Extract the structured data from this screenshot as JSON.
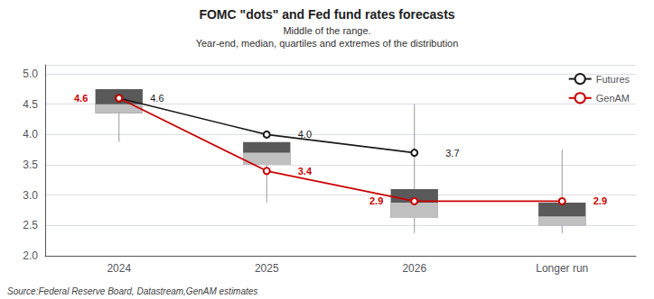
{
  "chart_data": {
    "type": "boxplot",
    "title": "FOMC \"dots\" and Fed fund rates forecasts",
    "subtitle": [
      "Middle of the range.",
      "Year-end, median, quartiles and extremes of the distribution"
    ],
    "source": "Source:Federal Reserve Board, Datastream,GenAM estimates",
    "categories": [
      "2024",
      "2025",
      "2026",
      "Longer run"
    ],
    "boxes": {
      "colors": [
        "#c0c0c0",
        "#595959",
        "#999999"
      ],
      "values": [
        {
          "tail_low": 3.88,
          "whisker_low": 4.1,
          "q1": 4.35,
          "median": 4.5,
          "q3": 4.75,
          "whisker_high": null
        },
        {
          "tail_low": 2.88,
          "whisker_low": 3.1,
          "q1": 3.5,
          "median": 3.7,
          "q3": 3.875,
          "whisker_high": null
        },
        {
          "tail_low": null,
          "whisker_low": 2.375,
          "q1": 2.625,
          "median": 2.875,
          "q3": 3.1,
          "whisker_high": 4.5
        },
        {
          "tail_low": null,
          "whisker_low": 2.375,
          "q1": 2.5,
          "median": 2.65,
          "q3": 2.875,
          "whisker_high": 3.75
        }
      ]
    },
    "series": [
      {
        "name": "Futures",
        "type": "line",
        "color": "#1a1a1a",
        "marker": "circle",
        "values": [
          4.6,
          4.0,
          3.7,
          null
        ],
        "value_labels": [
          "4.6",
          "4.0",
          "3.7",
          null
        ]
      },
      {
        "name": "GenAM",
        "type": "line",
        "color": "#cc0000",
        "marker": "circle",
        "values": [
          4.6,
          3.4,
          2.9,
          2.9
        ]
      }
    ],
    "ylim": [
      2.0,
      5.15
    ],
    "yticks": [
      {
        "value": 2.0,
        "label": "2.0"
      },
      {
        "value": 2.5,
        "label": "2.5"
      },
      {
        "value": 3.0,
        "label": "3.0"
      },
      {
        "value": 3.5,
        "label": "3.5"
      },
      {
        "value": 4.0,
        "label": "4.0"
      },
      {
        "value": 4.5,
        "label": "4.5"
      },
      {
        "value": 5.0,
        "label": "5.0"
      }
    ],
    "grid": true,
    "legend": "upper right",
    "data_labels": true
  }
}
